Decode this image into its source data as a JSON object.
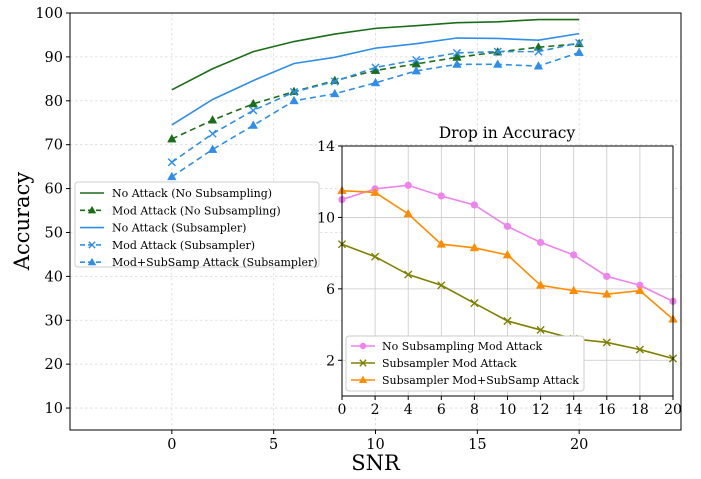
{
  "chart_data": [
    {
      "type": "line",
      "title": "",
      "xlabel": "SNR",
      "ylabel": "Accuracy",
      "xlim": [
        -5,
        25
      ],
      "ylim": [
        5,
        100
      ],
      "xticks": [
        0,
        5,
        10,
        15,
        20
      ],
      "yticks": [
        10,
        20,
        30,
        40,
        50,
        60,
        70,
        80,
        90,
        100
      ],
      "grid": true,
      "legend_position": "center-left",
      "series": [
        {
          "name": "No Attack (No Subsampling)",
          "color": "#1a6e1a",
          "style": "solid",
          "marker": "none",
          "x": [
            0,
            2,
            4,
            6,
            8,
            10,
            12,
            14,
            16,
            18,
            20
          ],
          "y": [
            82.5,
            87.3,
            91.2,
            93.5,
            95.2,
            96.5,
            97.1,
            97.8,
            98.0,
            98.5,
            98.5
          ]
        },
        {
          "name": "Mod Attack (No Subsampling)",
          "color": "#1a6e1a",
          "style": "dashed",
          "marker": "triangle",
          "x": [
            0,
            2,
            4,
            6,
            8,
            10,
            12,
            14,
            16,
            18,
            20
          ],
          "y": [
            71.3,
            75.6,
            79.3,
            82.1,
            84.6,
            86.9,
            88.4,
            89.9,
            91.1,
            92.2,
            93.0
          ]
        },
        {
          "name": "No Attack (Subsampler)",
          "color": "#2e8ee8",
          "style": "solid",
          "marker": "none",
          "x": [
            0,
            2,
            4,
            6,
            8,
            10,
            12,
            14,
            16,
            18,
            20
          ],
          "y": [
            74.5,
            80.3,
            84.6,
            88.5,
            89.9,
            92.0,
            93.0,
            94.3,
            94.2,
            93.8,
            95.3
          ]
        },
        {
          "name": "Mod Attack (Subsampler)",
          "color": "#2e8ee8",
          "style": "dashed",
          "marker": "x",
          "x": [
            0,
            2,
            4,
            6,
            8,
            10,
            12,
            14,
            16,
            18,
            20
          ],
          "y": [
            66.0,
            72.5,
            77.8,
            82.0,
            84.4,
            87.6,
            89.3,
            90.9,
            91.2,
            91.2,
            93.2
          ]
        },
        {
          "name": "Mod+SubSamp Attack (Subsampler)",
          "color": "#2e8ee8",
          "style": "dashed",
          "marker": "triangle",
          "x": [
            0,
            2,
            4,
            6,
            8,
            10,
            12,
            14,
            16,
            18,
            20
          ],
          "y": [
            62.7,
            68.9,
            74.4,
            80.0,
            81.6,
            84.1,
            86.8,
            88.3,
            88.3,
            87.9,
            91.0
          ]
        }
      ]
    },
    {
      "type": "line",
      "title": "Drop in Accuracy",
      "xlabel": "",
      "ylabel": "",
      "xlim": [
        0,
        20
      ],
      "ylim": [
        0,
        14
      ],
      "xticks": [
        0,
        2,
        4,
        6,
        8,
        10,
        12,
        14,
        16,
        18,
        20
      ],
      "yticks": [
        2,
        6,
        10,
        14
      ],
      "grid": true,
      "legend_position": "lower-left",
      "series": [
        {
          "name": "No Subsampling Mod Attack",
          "color": "#ee82ee",
          "marker": "circle",
          "x": [
            0,
            2,
            4,
            6,
            8,
            10,
            12,
            14,
            16,
            18,
            20
          ],
          "y": [
            11.0,
            11.6,
            11.8,
            11.2,
            10.7,
            9.5,
            8.6,
            7.9,
            6.7,
            6.2,
            5.3
          ]
        },
        {
          "name": "Subsampler Mod Attack",
          "color": "#808000",
          "marker": "x",
          "x": [
            0,
            2,
            4,
            6,
            8,
            10,
            12,
            14,
            16,
            18,
            20
          ],
          "y": [
            8.5,
            7.8,
            6.8,
            6.2,
            5.2,
            4.2,
            3.7,
            3.2,
            3.0,
            2.6,
            2.1
          ]
        },
        {
          "name": "Subsampler Mod+SubSamp Attack",
          "color": "#ff8c00",
          "marker": "triangle",
          "x": [
            0,
            2,
            4,
            6,
            8,
            10,
            12,
            14,
            16,
            18,
            20
          ],
          "y": [
            11.5,
            11.4,
            10.2,
            8.5,
            8.3,
            7.9,
            6.2,
            5.9,
            5.7,
            5.9,
            4.3
          ]
        }
      ]
    }
  ]
}
